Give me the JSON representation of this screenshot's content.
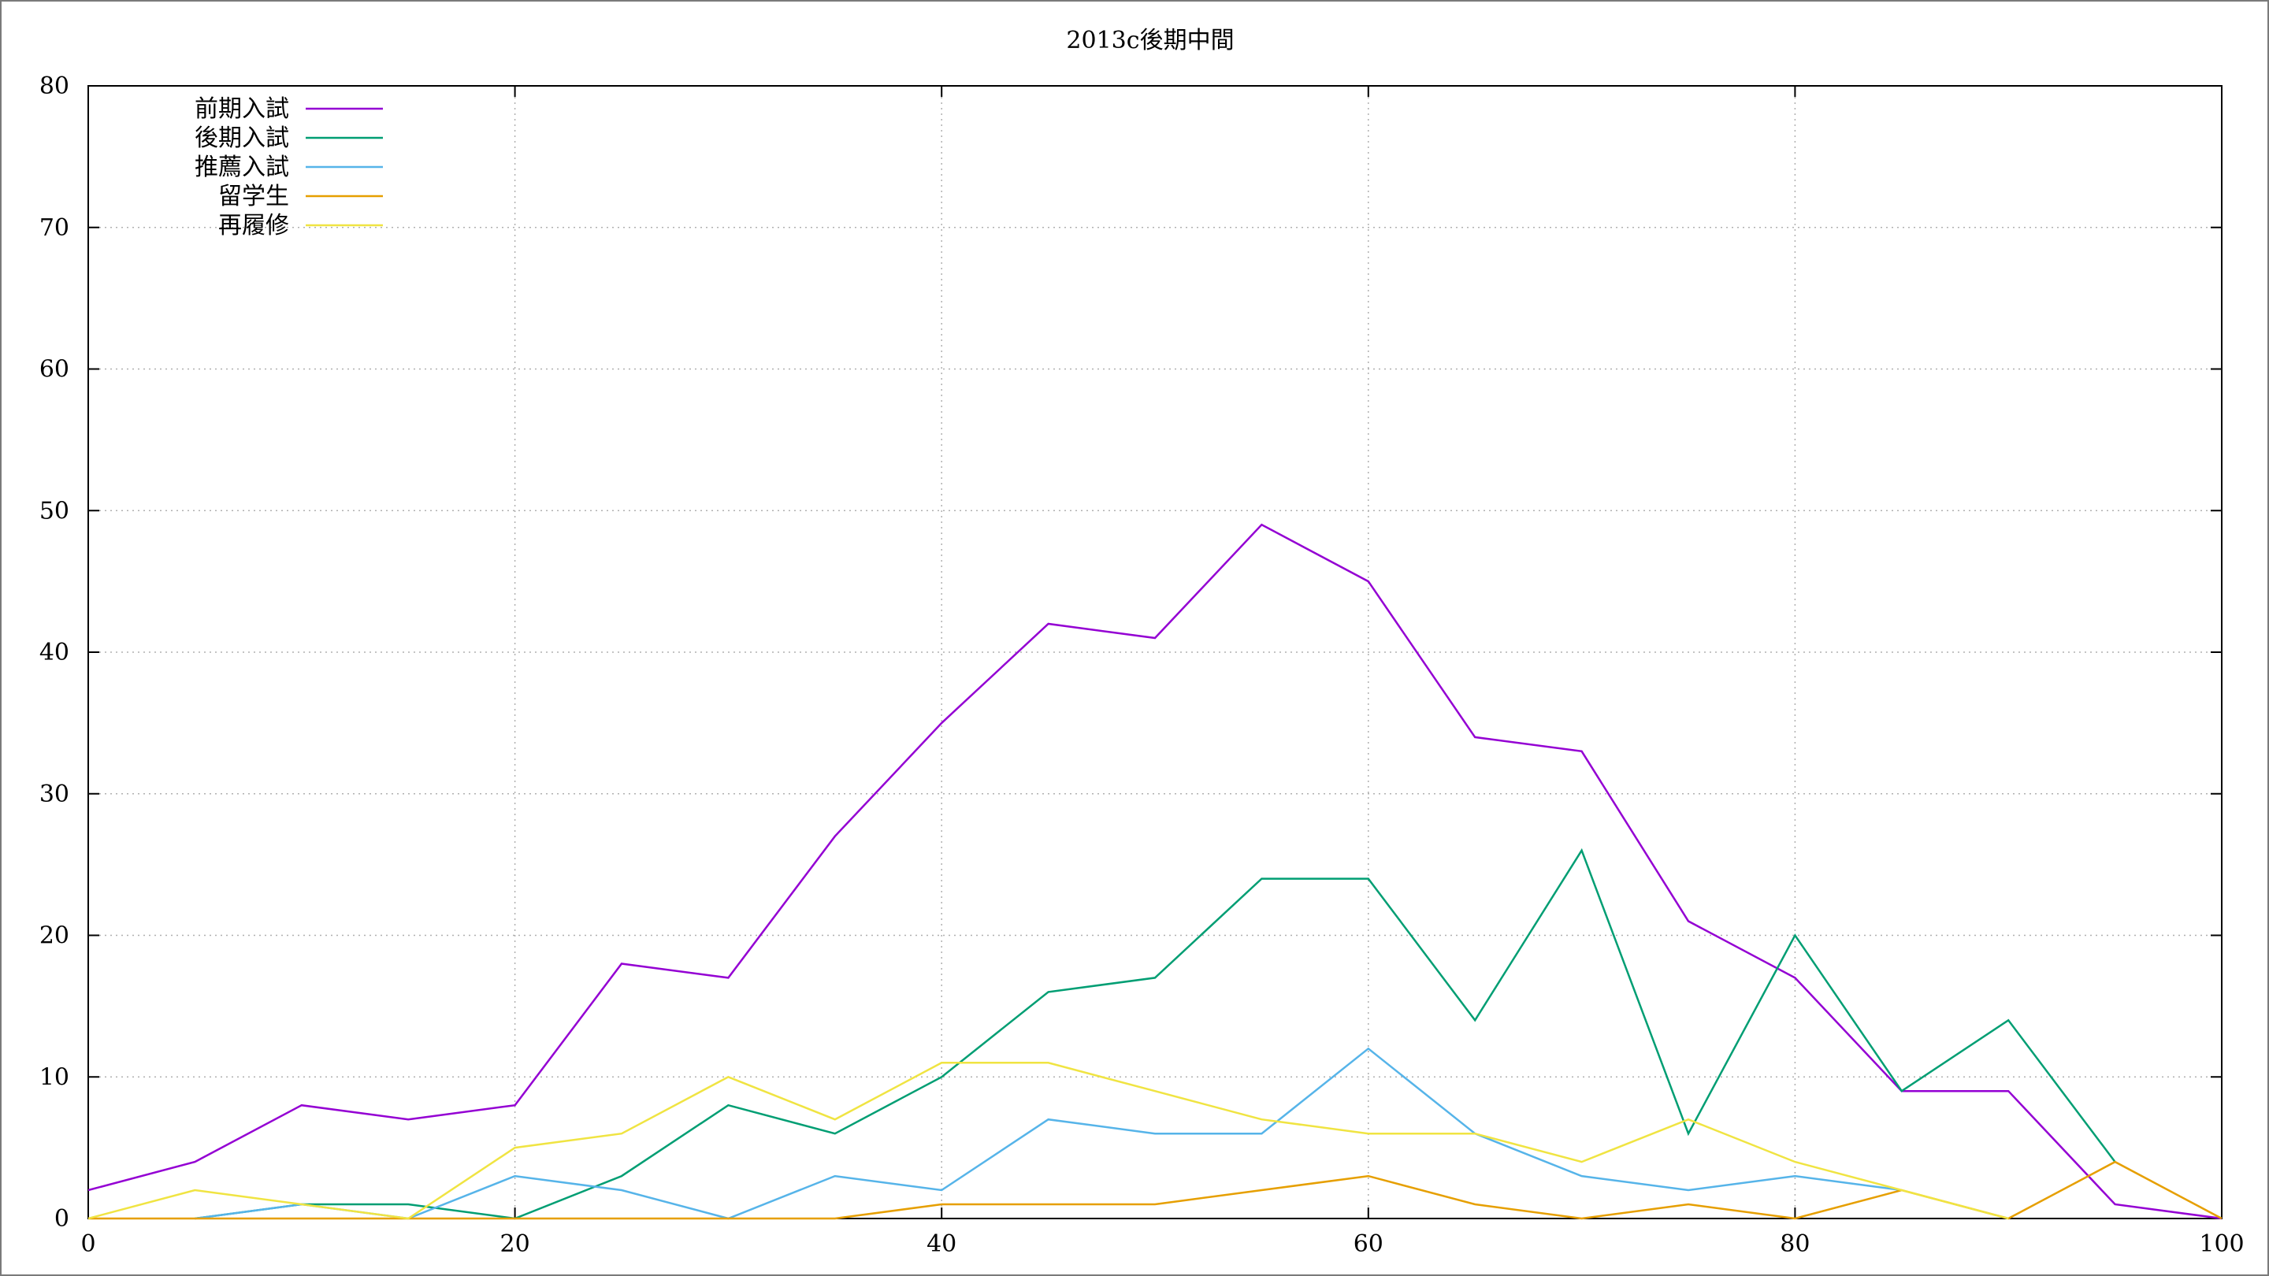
{
  "chart_data": {
    "type": "line",
    "title": "2013c後期中間",
    "xlabel": "",
    "ylabel": "",
    "xlim": [
      0,
      100
    ],
    "ylim": [
      0,
      80
    ],
    "x_ticks": [
      0,
      20,
      40,
      60,
      80,
      100
    ],
    "y_ticks": [
      0,
      10,
      20,
      30,
      40,
      50,
      60,
      70,
      80
    ],
    "grid": true,
    "legend_position": "top-left",
    "series": [
      {
        "name": "前期入試",
        "color": "#9400d3",
        "points": [
          [
            0,
            2
          ],
          [
            5,
            4
          ],
          [
            10,
            8
          ],
          [
            15,
            7
          ],
          [
            20,
            8
          ],
          [
            25,
            18
          ],
          [
            30,
            17
          ],
          [
            35,
            27
          ],
          [
            40,
            35
          ],
          [
            45,
            42
          ],
          [
            50,
            41
          ],
          [
            55,
            49
          ],
          [
            60,
            45
          ],
          [
            65,
            34
          ],
          [
            70,
            33
          ],
          [
            75,
            21
          ],
          [
            80,
            17
          ],
          [
            85,
            9
          ],
          [
            90,
            9
          ],
          [
            95,
            1
          ],
          [
            100,
            0
          ]
        ]
      },
      {
        "name": "後期入試",
        "color": "#009e73",
        "points": [
          [
            5,
            0
          ],
          [
            10,
            1
          ],
          [
            15,
            1
          ],
          [
            20,
            0
          ],
          [
            25,
            3
          ],
          [
            30,
            8
          ],
          [
            35,
            6
          ],
          [
            40,
            10
          ],
          [
            45,
            16
          ],
          [
            50,
            17
          ],
          [
            55,
            24
          ],
          [
            60,
            24
          ],
          [
            65,
            14
          ],
          [
            70,
            26
          ],
          [
            75,
            6
          ],
          [
            80,
            20
          ],
          [
            85,
            9
          ],
          [
            90,
            14
          ],
          [
            95,
            4
          ]
        ]
      },
      {
        "name": "推薦入試",
        "color": "#56b4e9",
        "points": [
          [
            5,
            0
          ],
          [
            10,
            1
          ],
          [
            15,
            0
          ],
          [
            20,
            3
          ],
          [
            25,
            2
          ],
          [
            30,
            0
          ],
          [
            35,
            3
          ],
          [
            40,
            2
          ],
          [
            45,
            7
          ],
          [
            50,
            6
          ],
          [
            55,
            6
          ],
          [
            60,
            12
          ],
          [
            65,
            6
          ],
          [
            70,
            3
          ],
          [
            75,
            2
          ],
          [
            80,
            3
          ],
          [
            85,
            2
          ]
        ]
      },
      {
        "name": "留学生",
        "color": "#e69f00",
        "points": [
          [
            0,
            0
          ],
          [
            5,
            0
          ],
          [
            10,
            0
          ],
          [
            15,
            0
          ],
          [
            20,
            0
          ],
          [
            25,
            0
          ],
          [
            30,
            0
          ],
          [
            35,
            0
          ],
          [
            40,
            1
          ],
          [
            45,
            1
          ],
          [
            50,
            1
          ],
          [
            55,
            2
          ],
          [
            60,
            3
          ],
          [
            65,
            1
          ],
          [
            70,
            0
          ],
          [
            75,
            1
          ],
          [
            80,
            0
          ],
          [
            85,
            2
          ],
          [
            90,
            0
          ],
          [
            95,
            4
          ],
          [
            100,
            0
          ]
        ]
      },
      {
        "name": "再履修",
        "color": "#f0e442",
        "points": [
          [
            0,
            0
          ],
          [
            5,
            2
          ],
          [
            10,
            1
          ],
          [
            15,
            0
          ],
          [
            20,
            5
          ],
          [
            25,
            6
          ],
          [
            30,
            10
          ],
          [
            35,
            7
          ],
          [
            40,
            11
          ],
          [
            45,
            11
          ],
          [
            50,
            9
          ],
          [
            55,
            7
          ],
          [
            60,
            6
          ],
          [
            65,
            6
          ],
          [
            70,
            4
          ],
          [
            75,
            7
          ],
          [
            80,
            4
          ],
          [
            85,
            2
          ],
          [
            90,
            0
          ]
        ]
      }
    ]
  }
}
